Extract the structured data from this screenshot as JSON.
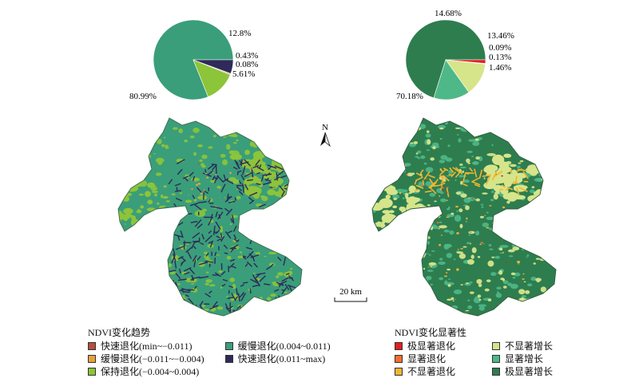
{
  "north_label": "N",
  "scale_label": "20 km",
  "colors": {
    "trend_fast_deg": "#b5503a",
    "trend_slow_deg": "#e6a23c",
    "trend_stable": "#8cc43a",
    "trend_slow_rec": "#3a9e7a",
    "trend_fast_rec": "#2e2a5a",
    "sig_extreme_deg": "#e02020",
    "sig_deg": "#f07030",
    "sig_nonsig_deg": "#f2b531",
    "sig_nonsig_inc": "#d6e58a",
    "sig_inc": "#4fb888",
    "sig_extreme_inc": "#2e7d4f"
  },
  "trend_legend": {
    "title": "NDVI变化趋势",
    "items": [
      {
        "label": "快速退化(min~−0.011)",
        "color": "#b5503a"
      },
      {
        "label": "缓慢退化(−0.011~−0.004)",
        "color": "#e6a23c"
      },
      {
        "label": "保持退化(−0.004~0.004)",
        "color": "#8cc43a"
      },
      {
        "label": "缓慢退化(0.004~0.011)",
        "color": "#3a9e7a"
      },
      {
        "label": "快速退化(0.011~max)",
        "color": "#2e2a5a"
      }
    ]
  },
  "significance_legend": {
    "title": "NDVI变化显著性",
    "items": [
      {
        "label": "极显著退化",
        "color": "#e02020"
      },
      {
        "label": "显著退化",
        "color": "#f07030"
      },
      {
        "label": "不显著退化",
        "color": "#f2b531"
      },
      {
        "label": "不显著增长",
        "color": "#d6e58a"
      },
      {
        "label": "显著增长",
        "color": "#4fb888"
      },
      {
        "label": "极显著增长",
        "color": "#2e7d4f"
      }
    ]
  },
  "chart_data": [
    {
      "type": "pie",
      "name_ref": "trend",
      "slices": [
        {
          "value": 80.99,
          "label": "80.99%",
          "color": "#3a9e7a"
        },
        {
          "value": 12.8,
          "label": "12.8%",
          "color": "#8cc43a"
        },
        {
          "value": 0.43,
          "label": "0.43%",
          "color": "#e6a23c"
        },
        {
          "value": 0.08,
          "label": "0.08%",
          "color": "#b5503a"
        },
        {
          "value": 5.61,
          "label": "5.61%",
          "color": "#2e2a5a"
        }
      ]
    },
    {
      "type": "pie",
      "name_ref": "significance",
      "slices": [
        {
          "value": 70.18,
          "label": "70.18%",
          "color": "#2e7d4f"
        },
        {
          "value": 14.68,
          "label": "14.68%",
          "color": "#4fb888"
        },
        {
          "value": 13.46,
          "label": "13.46%",
          "color": "#d6e58a"
        },
        {
          "value": 0.09,
          "label": "0.09%",
          "color": "#f07030"
        },
        {
          "value": 0.13,
          "label": "0.13%",
          "color": "#f2b531"
        },
        {
          "value": 1.46,
          "label": "1.46%",
          "color": "#e02020"
        }
      ]
    }
  ]
}
